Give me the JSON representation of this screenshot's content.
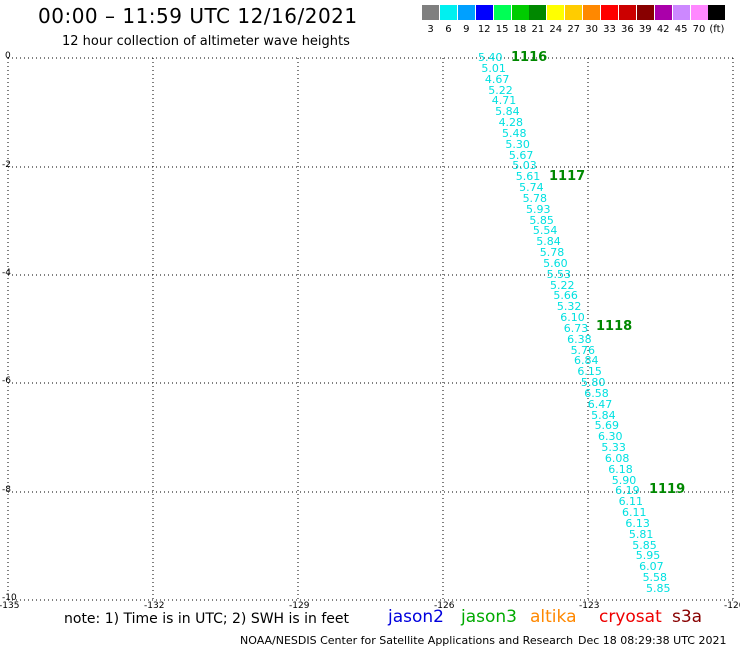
{
  "header": {
    "title": "00:00 – 11:59 UTC 12/16/2021",
    "subtitle": "12 hour collection of altimeter wave heights"
  },
  "legend": {
    "colors": [
      "#7f7f7f",
      "#00f0f0",
      "#00a0ff",
      "#0000ff",
      "#00ff55",
      "#00cc00",
      "#008800",
      "#ffff00",
      "#ffcc00",
      "#ff8800",
      "#ff0000",
      "#cc0000",
      "#880000",
      "#aa00aa",
      "#cc88ff",
      "#ff88ff",
      "#000000"
    ],
    "labels": [
      "3",
      "6",
      "9",
      "12",
      "15",
      "18",
      "21",
      "24",
      "27",
      "30",
      "33",
      "36",
      "39",
      "42",
      "45",
      "70",
      "(ft)"
    ]
  },
  "map": {
    "x_ticks": [
      "-135",
      "-132",
      "-129",
      "-126",
      "-123",
      "-120"
    ],
    "y_ticks": [
      "0",
      "-2",
      "-4",
      "-6",
      "-8",
      "-10"
    ],
    "grid": "dotted",
    "swh_values": [
      "5.40",
      "5.01",
      "4.67",
      "5.22",
      "4.71",
      "5.84",
      "4.28",
      "5.48",
      "5.30",
      "5.67",
      "5.03",
      "5.61",
      "5.74",
      "5.78",
      "5.93",
      "5.85",
      "5.54",
      "5.84",
      "5.78",
      "5.60",
      "5.53",
      "5.22",
      "5.66",
      "5.32",
      "6.10",
      "6.73",
      "6.38",
      "5.76",
      "6.84",
      "6.15",
      "5.80",
      "6.58",
      "6.47",
      "5.84",
      "5.69",
      "6.30",
      "5.33",
      "6.08",
      "6.18",
      "5.90",
      "6.19",
      "6.11",
      "6.11",
      "6.13",
      "5.81",
      "5.85",
      "5.95",
      "6.07",
      "5.58",
      "5.85"
    ],
    "swh_color": "#00e0e0",
    "times": [
      "1116",
      "1117",
      "1118",
      "1119"
    ],
    "time_color": "#008800"
  },
  "footer": {
    "note": "note: 1) Time is in UTC; 2) SWH is in feet",
    "satellites": [
      {
        "name": "jason2",
        "color": "#0000dd"
      },
      {
        "name": "jason3",
        "color": "#00aa00"
      },
      {
        "name": "altika",
        "color": "#ff8800"
      },
      {
        "name": "cryosat",
        "color": "#ee0000"
      },
      {
        "name": "s3a",
        "color": "#880000"
      }
    ],
    "credit": "NOAA/NESDIS Center for Satellite Applications and Research",
    "timestamp": "Dec 18 08:29:38 UTC 2021"
  }
}
